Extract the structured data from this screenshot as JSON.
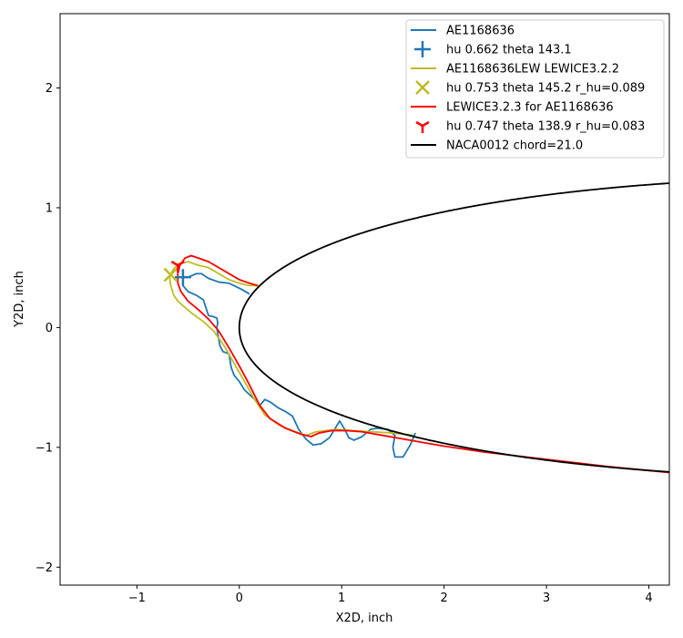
{
  "chart_data": {
    "type": "line",
    "title": "",
    "xlabel": "X2D, inch",
    "ylabel": "Y2D, inch",
    "xlim": [
      -1.75,
      4.2
    ],
    "ylim": [
      -2.15,
      2.62
    ],
    "xticks": [
      -1,
      0,
      1,
      2,
      3,
      4
    ],
    "yticks": [
      -2,
      -1,
      0,
      1,
      2
    ],
    "grid": false,
    "legend_position": "top-right",
    "series": [
      {
        "name": "AE1168636",
        "kind": "line",
        "color": "#1f77b4",
        "points": [
          [
            0.1,
            0.28
          ],
          [
            0.02,
            0.32
          ],
          [
            -0.1,
            0.37
          ],
          [
            -0.2,
            0.38
          ],
          [
            -0.3,
            0.41
          ],
          [
            -0.37,
            0.45
          ],
          [
            -0.42,
            0.45
          ],
          [
            -0.5,
            0.42
          ],
          [
            -0.55,
            0.42
          ],
          [
            -0.55,
            0.35
          ],
          [
            -0.5,
            0.3
          ],
          [
            -0.42,
            0.27
          ],
          [
            -0.35,
            0.23
          ],
          [
            -0.32,
            0.15
          ],
          [
            -0.3,
            0.1
          ],
          [
            -0.25,
            0.09
          ],
          [
            -0.22,
            0.08
          ],
          [
            -0.21,
            0.04
          ],
          [
            -0.22,
            0.0
          ],
          [
            -0.19,
            -0.15
          ],
          [
            -0.16,
            -0.2
          ],
          [
            -0.1,
            -0.22
          ],
          [
            -0.08,
            -0.33
          ],
          [
            -0.05,
            -0.4
          ],
          [
            0.0,
            -0.45
          ],
          [
            0.05,
            -0.52
          ],
          [
            0.1,
            -0.56
          ],
          [
            0.15,
            -0.6
          ],
          [
            0.2,
            -0.65
          ],
          [
            0.25,
            -0.6
          ],
          [
            0.3,
            -0.62
          ],
          [
            0.38,
            -0.67
          ],
          [
            0.45,
            -0.7
          ],
          [
            0.52,
            -0.74
          ],
          [
            0.58,
            -0.85
          ],
          [
            0.65,
            -0.93
          ],
          [
            0.72,
            -0.98
          ],
          [
            0.8,
            -0.97
          ],
          [
            0.88,
            -0.92
          ],
          [
            0.93,
            -0.85
          ],
          [
            0.98,
            -0.78
          ],
          [
            1.03,
            -0.85
          ],
          [
            1.07,
            -0.92
          ],
          [
            1.12,
            -0.94
          ],
          [
            1.2,
            -0.91
          ],
          [
            1.28,
            -0.85
          ],
          [
            1.35,
            -0.84
          ],
          [
            1.45,
            -0.85
          ],
          [
            1.52,
            -0.9
          ],
          [
            1.5,
            -1.0
          ],
          [
            1.52,
            -1.08
          ],
          [
            1.6,
            -1.08
          ],
          [
            1.67,
            -0.98
          ],
          [
            1.72,
            -0.88
          ]
        ]
      },
      {
        "name": "hu 0.662 theta 143.1",
        "kind": "marker",
        "marker": "plus",
        "color": "#1f77b4",
        "x": -0.55,
        "y": 0.42
      },
      {
        "name": "AE1168636LEW LEWICE3.2.2",
        "kind": "line",
        "color": "#bcbd22",
        "points": [
          [
            0.2,
            0.35
          ],
          [
            0.1,
            0.35
          ],
          [
            0.0,
            0.37
          ],
          [
            -0.1,
            0.4
          ],
          [
            -0.2,
            0.45
          ],
          [
            -0.3,
            0.5
          ],
          [
            -0.4,
            0.52
          ],
          [
            -0.5,
            0.55
          ],
          [
            -0.6,
            0.53
          ],
          [
            -0.65,
            0.48
          ],
          [
            -0.68,
            0.42
          ],
          [
            -0.67,
            0.35
          ],
          [
            -0.64,
            0.27
          ],
          [
            -0.6,
            0.22
          ],
          [
            -0.52,
            0.16
          ],
          [
            -0.45,
            0.11
          ],
          [
            -0.35,
            0.05
          ],
          [
            -0.25,
            -0.03
          ],
          [
            -0.15,
            -0.15
          ],
          [
            -0.05,
            -0.3
          ],
          [
            0.05,
            -0.45
          ],
          [
            0.15,
            -0.6
          ],
          [
            0.25,
            -0.73
          ],
          [
            0.4,
            -0.82
          ],
          [
            0.55,
            -0.87
          ],
          [
            0.65,
            -0.9
          ],
          [
            0.75,
            -0.87
          ],
          [
            0.85,
            -0.86
          ],
          [
            0.95,
            -0.85
          ],
          [
            1.1,
            -0.86
          ],
          [
            1.3,
            -0.87
          ],
          [
            1.5,
            -0.88
          ],
          [
            1.7,
            -0.9
          ]
        ]
      },
      {
        "name": "hu 0.753 theta 145.2 r_hu=0.089",
        "kind": "marker",
        "marker": "x",
        "color": "#bcbd22",
        "x": -0.67,
        "y": 0.44
      },
      {
        "name": "LEWICE3.2.3 for AE1168636",
        "kind": "line",
        "color": "#ff0000",
        "points": [
          [
            0.18,
            0.35
          ],
          [
            0.1,
            0.37
          ],
          [
            0.0,
            0.4
          ],
          [
            -0.1,
            0.45
          ],
          [
            -0.2,
            0.5
          ],
          [
            -0.3,
            0.55
          ],
          [
            -0.4,
            0.58
          ],
          [
            -0.47,
            0.6
          ],
          [
            -0.53,
            0.58
          ],
          [
            -0.58,
            0.52
          ],
          [
            -0.6,
            0.45
          ],
          [
            -0.6,
            0.37
          ],
          [
            -0.57,
            0.3
          ],
          [
            -0.5,
            0.22
          ],
          [
            -0.4,
            0.15
          ],
          [
            -0.3,
            0.07
          ],
          [
            -0.2,
            -0.03
          ],
          [
            -0.1,
            -0.17
          ],
          [
            0.0,
            -0.32
          ],
          [
            0.1,
            -0.48
          ],
          [
            0.2,
            -0.65
          ],
          [
            0.3,
            -0.76
          ],
          [
            0.45,
            -0.84
          ],
          [
            0.6,
            -0.89
          ],
          [
            0.7,
            -0.91
          ],
          [
            0.78,
            -0.88
          ],
          [
            0.9,
            -0.86
          ],
          [
            1.05,
            -0.86
          ],
          [
            1.2,
            -0.87
          ],
          [
            1.4,
            -0.9
          ],
          [
            1.6,
            -0.93
          ],
          [
            1.8,
            -0.96
          ],
          [
            2.0,
            -0.99
          ],
          [
            2.4,
            -1.04
          ],
          [
            2.8,
            -1.08
          ],
          [
            3.2,
            -1.12
          ],
          [
            3.6,
            -1.16
          ],
          [
            4.2,
            -1.21
          ]
        ]
      },
      {
        "name": "hu 0.747 theta 138.9 r_hu=0.083",
        "kind": "marker",
        "marker": "tri_down",
        "color": "#ff0000",
        "x": -0.6,
        "y": 0.52
      },
      {
        "name": "NACA0012 chord=21.0",
        "kind": "airfoil",
        "color": "#000000",
        "chord": 21.0,
        "thickness": 0.12
      }
    ]
  }
}
